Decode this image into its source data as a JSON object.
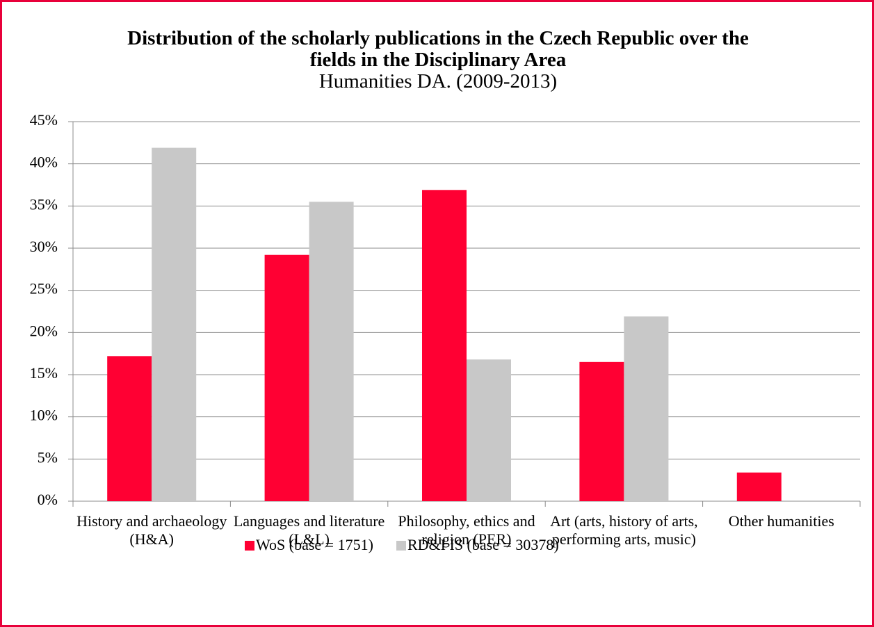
{
  "chart_data": {
    "type": "bar",
    "title": "Distribution of the scholarly publications in the Czech Republic over the fields in the Disciplinary Area",
    "subtitle": "Humanities DA. (2009-2013)",
    "categories": [
      "History and archaeology (H&A)",
      "Languages and literature (L&L)",
      "Philosophy, ethics and religion (PER)",
      "Art (arts, history of arts, performing arts, music)",
      "Other humanities"
    ],
    "series": [
      {
        "name": "WoS (base = 1751)",
        "color": "#ff0033",
        "values": [
          17.2,
          29.2,
          36.9,
          16.5,
          3.4
        ]
      },
      {
        "name": "RD&I IS (base = 30378)",
        "color": "#c8c8c8",
        "values": [
          41.9,
          35.5,
          16.8,
          21.9,
          0
        ]
      }
    ],
    "ylim": [
      0,
      45
    ],
    "yticks": [
      {
        "value": 0,
        "label": "0%"
      },
      {
        "value": 5,
        "label": "5%"
      },
      {
        "value": 10,
        "label": "10%"
      },
      {
        "value": 15,
        "label": "15%"
      },
      {
        "value": 20,
        "label": "20%"
      },
      {
        "value": 25,
        "label": "25%"
      },
      {
        "value": 30,
        "label": "30%"
      },
      {
        "value": 35,
        "label": "35%"
      },
      {
        "value": 40,
        "label": "40%"
      },
      {
        "value": 45,
        "label": "45%"
      }
    ],
    "grid": true,
    "legend": "bottom"
  }
}
